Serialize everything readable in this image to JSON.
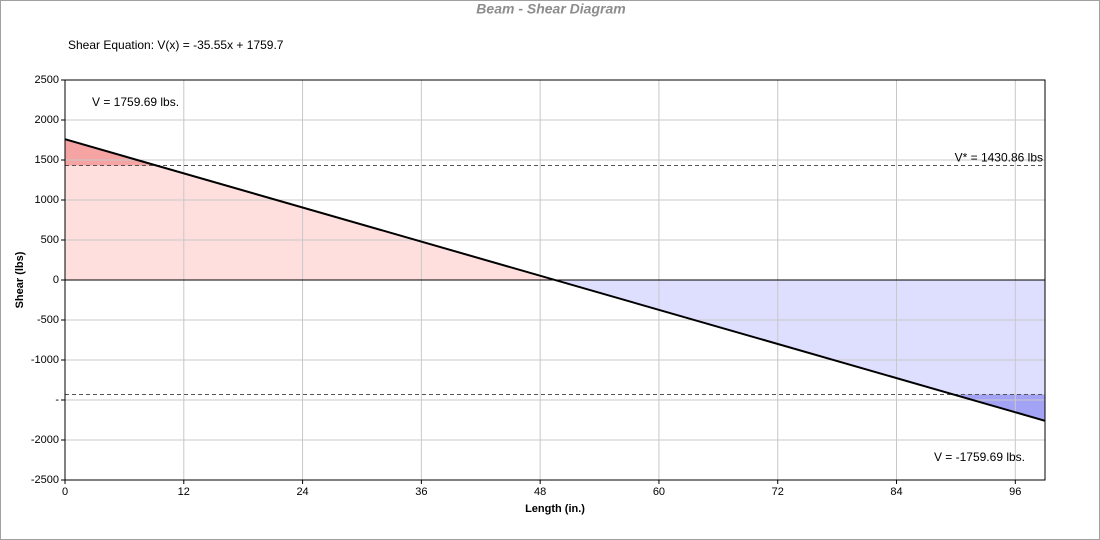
{
  "chart_data": {
    "type": "line",
    "title": "Beam - Shear Diagram",
    "equation": "Shear Equation:  V(x) = -35.55x + 1759.7",
    "annotations": [
      "V = 1759.69 lbs.",
      "V* = 1430.86 lbs",
      "V = -1759.69 lbs."
    ],
    "x_label": "Length (in.)",
    "y_label": "Shear (lbs)",
    "x": [
      0,
      99
    ],
    "series": [
      {
        "values": [
          1759.69,
          -1759.69
        ],
        "color": "#000000"
      }
    ],
    "reference_lines": [
      1430.86,
      -1430.86
    ],
    "positive_fill": "#ffdede",
    "negative_fill": "#dedeff",
    "exceed_positive_fill": "#f5a3a3",
    "exceed_negative_fill": "#a3a3f5",
    "xlim": [
      0,
      99
    ],
    "xticks": [
      0,
      12,
      24,
      36,
      48,
      60,
      72,
      84,
      96
    ],
    "ylim": [
      -2500,
      2500
    ],
    "yticks": [
      -2500,
      -2000,
      {
        "value": -1500,
        "label": "-"
      },
      -1000,
      -500,
      0,
      500,
      1000,
      1500,
      2000,
      2500
    ],
    "grid": true
  }
}
